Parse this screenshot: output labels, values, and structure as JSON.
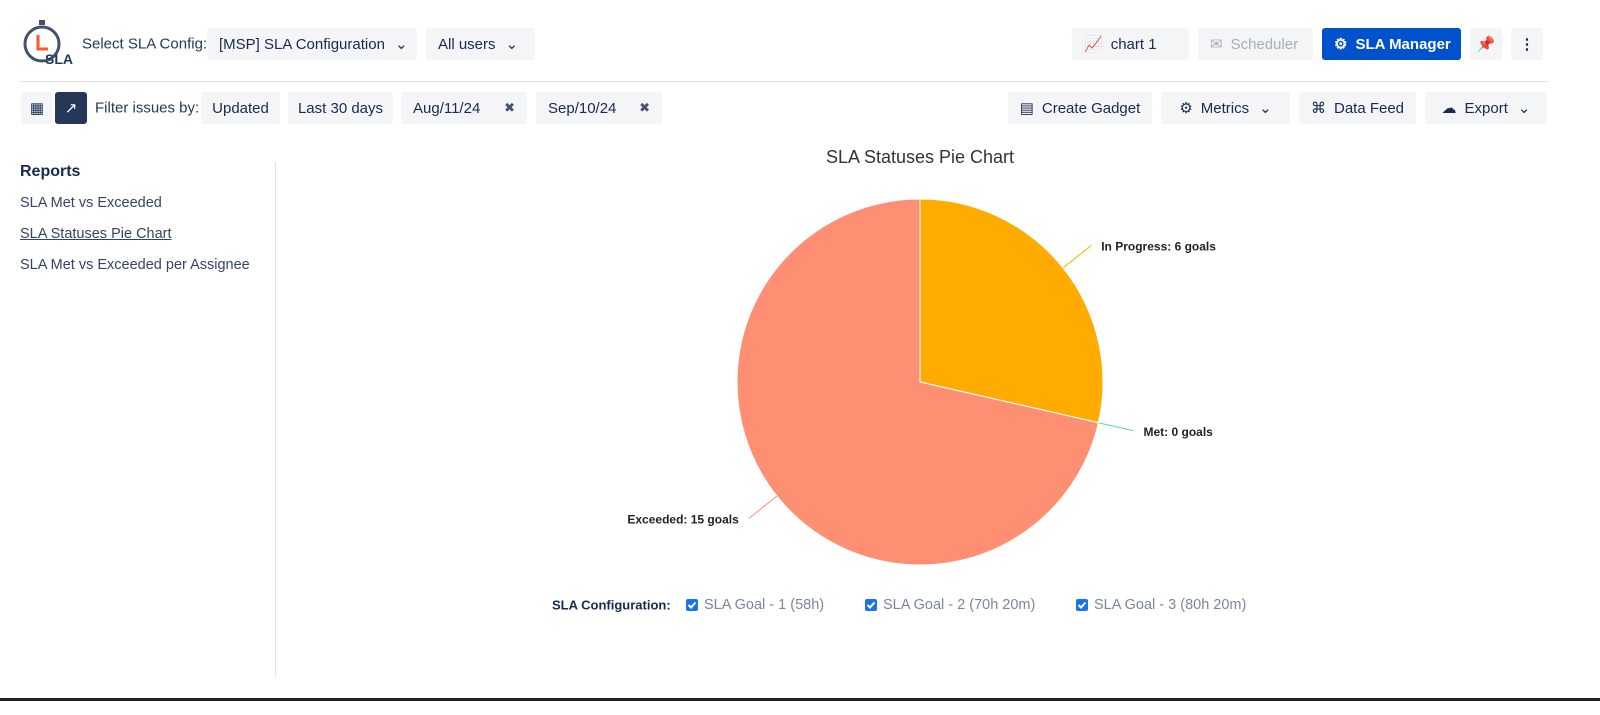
{
  "header": {
    "logo": "SLA",
    "select_label": "Select SLA Config:",
    "config": "[MSP] SLA Configuration",
    "users": "All users",
    "chart_button": "chart 1",
    "scheduler": "Scheduler",
    "sla_manager": "SLA Manager"
  },
  "toolbar": {
    "filter_label": "Filter issues by:",
    "filters": [
      "Updated",
      "Last 30 days",
      "Aug/11/24",
      "Sep/10/24"
    ],
    "actions": [
      "Create Gadget",
      "Metrics",
      "Data Feed",
      "Export"
    ]
  },
  "sidebar": {
    "title": "Reports",
    "items": [
      "SLA Met vs Exceeded",
      "SLA Statuses Pie Chart",
      "SLA Met vs Exceeded per Assignee"
    ]
  },
  "chart_data": {
    "type": "pie",
    "title": "SLA Statuses Pie Chart",
    "values": [
      6,
      0,
      15
    ],
    "value_labels": [
      "In Progress: 6 goals",
      "Met: 0 goals",
      "Exceeded: 15 goals"
    ],
    "colors": [
      "#ffab00",
      "#57d9a3",
      "#ff8f73"
    ]
  },
  "legend": {
    "label": "SLA Configuration:",
    "items": [
      "SLA Goal - 1 (58h)",
      "SLA Goal - 2 (70h 20m)",
      "SLA Goal - 3 (80h 20m)"
    ]
  }
}
